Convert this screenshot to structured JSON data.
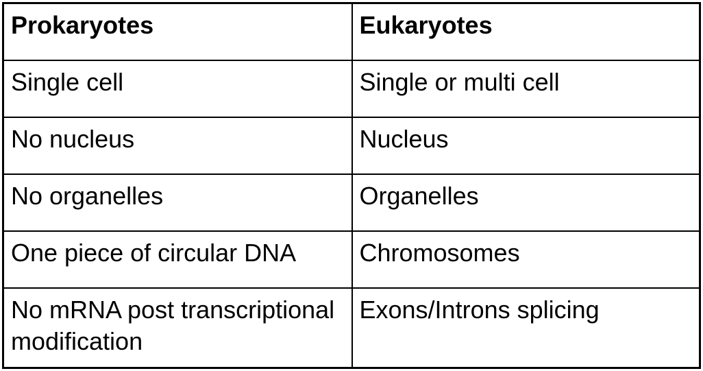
{
  "table": {
    "headers": [
      "Prokaryotes",
      "Eukaryotes"
    ],
    "rows": [
      [
        "Single cell",
        "Single or multi cell"
      ],
      [
        "No nucleus",
        "Nucleus"
      ],
      [
        "No organelles",
        "Organelles"
      ],
      [
        "One piece of circular DNA",
        "Chromosomes"
      ],
      [
        "No mRNA post transcriptional modification",
        "Exons/Introns splicing"
      ]
    ]
  }
}
